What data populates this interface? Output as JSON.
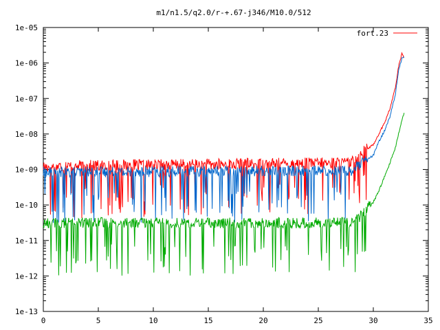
{
  "chart_data": {
    "type": "line",
    "title": "m1/n1.5/q2.0/r-+.67-j346/M10.0/512",
    "xlabel": "",
    "ylabel": "",
    "xlim": [
      0,
      35
    ],
    "ylim": [
      1e-13,
      1e-05
    ],
    "y_scale": "log",
    "grid": false,
    "legend_position": "top-right",
    "x_ticks": [
      "0",
      "5",
      "10",
      "15",
      "20",
      "25",
      "30",
      "35"
    ],
    "y_ticks": [
      "1e-13",
      "1e-12",
      "1e-11",
      "1e-10",
      "1e-09",
      "1e-08",
      "1e-07",
      "1e-06",
      "1e-05"
    ],
    "series": [
      {
        "name": "fort.23",
        "color": "#ff0000",
        "base_x": [
          0,
          28,
          29,
          30,
          30.5,
          31,
          31.5,
          32,
          32.3,
          32.6,
          32.8
        ],
        "base_y": [
          1.2e-09,
          1.5e-09,
          3e-09,
          5e-09,
          1e-08,
          2e-08,
          5e-08,
          2e-07,
          8e-07,
          1.8e-06,
          1.4e-06
        ],
        "noise_end_x": 29.5
      },
      {
        "color": "#0066cc",
        "base_x": [
          0,
          28,
          29,
          30,
          30.5,
          31,
          31.5,
          32,
          32.3,
          32.6,
          32.8
        ],
        "base_y": [
          8e-10,
          9e-10,
          1.5e-09,
          2.5e-09,
          6e-09,
          1.2e-08,
          3e-08,
          1.3e-07,
          6e-07,
          1.4e-06,
          1.5e-06
        ],
        "noise_end_x": 29.5
      },
      {
        "color": "#00aa00",
        "base_x": [
          0,
          28,
          29,
          30,
          30.5,
          31,
          31.5,
          32,
          32.3,
          32.6,
          32.8
        ],
        "base_y": [
          3e-11,
          3e-11,
          5e-11,
          1.2e-10,
          2.5e-10,
          6e-10,
          1.5e-09,
          4e-09,
          1e-08,
          2.5e-08,
          4e-08
        ],
        "noise_end_x": 29.8
      }
    ]
  }
}
